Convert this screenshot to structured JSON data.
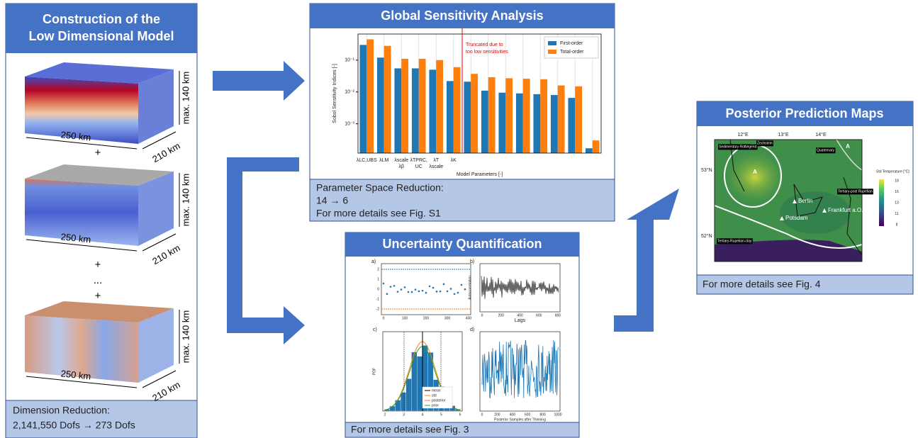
{
  "construction": {
    "title": [
      "Construction of the",
      "Low Dimensional Model"
    ],
    "models": [
      {
        "width": "250 km",
        "depth": "210 km",
        "height": "max. 140 km"
      },
      {
        "width": "250 km",
        "depth": "210 km",
        "height": "max. 140 km"
      },
      {
        "width": "250 km",
        "depth": "210 km",
        "height": "max. 140 km"
      }
    ],
    "operators": [
      "+",
      "+",
      "...",
      "+"
    ],
    "footer": [
      "Dimension Reduction:",
      "2,141,550 Dofs → 273 Dofs"
    ]
  },
  "sensitivity": {
    "title": "Global Sensitivity Analysis",
    "chart_data": {
      "type": "bar",
      "y_label": "Sobol Sensitivity Indices [-]",
      "x_label": "Model Parameters [-]",
      "categories": [
        "λLC,UBS",
        "λLM",
        "λscale",
        "λTPRC,",
        "λT",
        "λK",
        null,
        null,
        null,
        null,
        null,
        null,
        null,
        null
      ],
      "category_sublabels": [
        null,
        null,
        "λβ",
        "UC",
        "λscale",
        null,
        null,
        null,
        null,
        null,
        null,
        null,
        null,
        null
      ],
      "series": [
        {
          "name": "First-order",
          "color": "#1f77b4",
          "values": [
            0.3,
            0.12,
            0.055,
            0.055,
            0.05,
            0.022,
            0.021,
            0.011,
            0.0095,
            0.009,
            0.0085,
            0.008,
            0.0065,
            0.00017
          ]
        },
        {
          "name": "Total-order",
          "color": "#ff7f0e",
          "values": [
            0.45,
            0.28,
            0.11,
            0.11,
            0.1,
            0.06,
            0.037,
            0.029,
            0.027,
            0.026,
            0.025,
            0.016,
            0.015,
            0.0003
          ]
        }
      ],
      "ylim": [
        0.00012,
        0.66
      ],
      "log_y": true,
      "yticks": [
        {
          "value": 0.001,
          "label": "10⁻³"
        },
        {
          "value": 0.01,
          "label": "10⁻²"
        },
        {
          "value": 0.1,
          "label": "10⁻¹"
        }
      ],
      "annotation": [
        "Truncated due to",
        "too low sensitivities"
      ],
      "annotation_color": "#e8000b",
      "legend": "upper right"
    },
    "footer": [
      "Parameter Space Reduction:",
      "14 → 6",
      "For more details see Fig. S1"
    ]
  },
  "uncertainty": {
    "title": "Uncertainty Quantification",
    "plots": [
      {
        "label": "a)",
        "xticks": [
          "0",
          "100",
          "200",
          "300",
          "400"
        ],
        "yticks": [
          "2",
          "1",
          "0",
          "-1",
          "-2"
        ]
      },
      {
        "label": "b)",
        "x_label": "Lags",
        "y_label": "Autocorrelation",
        "xticks": [
          "0",
          "200",
          "400",
          "600",
          "800"
        ]
      },
      {
        "label": "c)",
        "y_label": "PDF",
        "xticks": [
          "2",
          "3",
          "4",
          "5",
          "6"
        ],
        "legend": [
          "mean",
          "std",
          "posterior",
          "prior"
        ]
      },
      {
        "label": "d)",
        "x_label": "Posterior Samples after Thinning",
        "xticks": [
          "0",
          "200",
          "400",
          "600",
          "800",
          "1000"
        ]
      }
    ],
    "footer": "For more details see Fig. 3"
  },
  "maps": {
    "title": "Posterior Prediction Maps",
    "longitudes": [
      "12°E",
      "13°E",
      "14°E"
    ],
    "latitudes": [
      "53°N",
      "52°N"
    ],
    "units": [
      "Sedimentary Rotliegend",
      "Zechstein",
      "Quaternary",
      "Tertiary-post Rupelian",
      "Tertiary-Rupelian-clay"
    ],
    "cities": [
      "Berlin",
      "Potsdam",
      "Frankfurt a.O."
    ],
    "markers": [
      "A",
      "A"
    ],
    "colorbar": {
      "label": "Std Temperature [°C]",
      "ticks": [
        "18",
        "16",
        "13",
        "11",
        "8"
      ]
    },
    "footer": "For more details see Fig. 4"
  }
}
